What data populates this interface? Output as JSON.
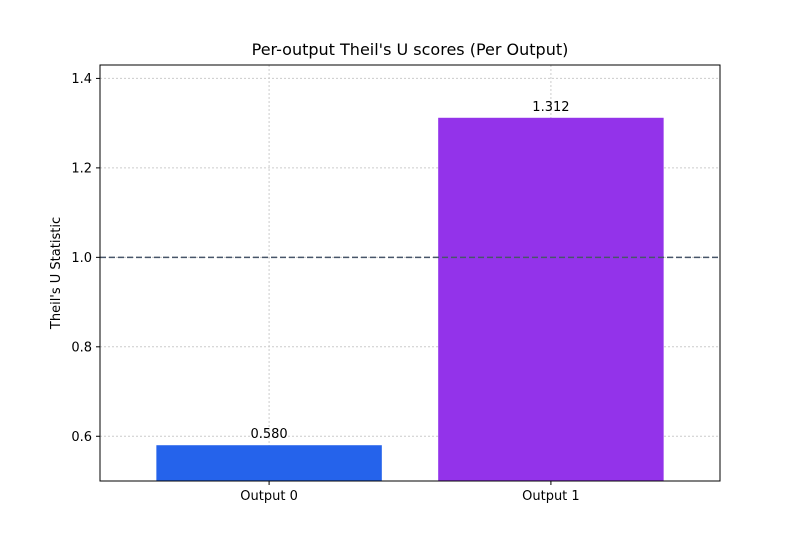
{
  "chart_data": {
    "type": "bar",
    "title": "Per-output Theil's U scores (Per Output)",
    "xlabel": "",
    "ylabel": "Theil's U Statistic",
    "categories": [
      "Output 0",
      "Output 1"
    ],
    "values": [
      0.58,
      1.312
    ],
    "value_labels": [
      "0.580",
      "1.312"
    ],
    "colors": [
      "#2563eb",
      "#9333ea"
    ],
    "ylim": [
      0.5,
      1.43
    ],
    "yticks": [
      0.6,
      0.8,
      1.0,
      1.2,
      1.4
    ],
    "ytick_labels": [
      "0.6",
      "0.8",
      "1.0",
      "1.2",
      "1.4"
    ],
    "reference_line": {
      "value": 1.0,
      "color": "#475569",
      "style": "dashed"
    },
    "grid": true,
    "legend": "none"
  }
}
